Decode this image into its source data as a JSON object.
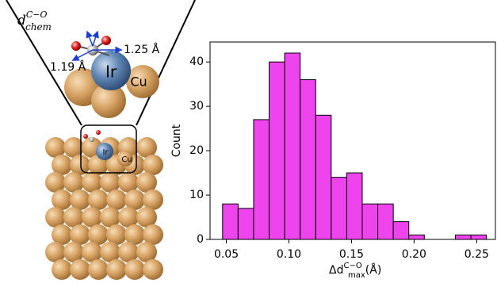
{
  "illustration": {
    "bond_label": {
      "base": "d",
      "sup": "C−O",
      "sub": "chem"
    },
    "distance_labels": [
      "1.25 Å",
      "1.19 Å"
    ],
    "atom_labels": [
      "Ir",
      "Cu",
      "Ir",
      "Cu"
    ]
  },
  "chart_data": {
    "type": "histogram",
    "ylabel": "Count",
    "xlabel": {
      "base": "Δd",
      "sup": "C−O",
      "sub": "max",
      "unit": "(Å)"
    },
    "bins": [
      0.047,
      0.0594,
      0.0718,
      0.0842,
      0.0966,
      0.109,
      0.1214,
      0.1338,
      0.1462,
      0.1586,
      0.171,
      0.1834,
      0.1958,
      0.2082,
      0.2206,
      0.233,
      0.2454,
      0.2578
    ],
    "values": [
      8,
      7,
      27,
      40,
      42,
      36,
      28,
      14,
      15,
      8,
      8,
      4,
      1,
      0,
      0,
      1,
      1
    ],
    "color": "#ee44ee",
    "edgecolor": "#000000",
    "xlim": [
      0.037,
      0.265
    ],
    "ylim": [
      0,
      44.5
    ],
    "xticks": [
      0.05,
      {
        "value": 0.1,
        "label": "0.10"
      },
      0.15,
      {
        "value": 0.2,
        "label": "0.20"
      },
      0.25
    ],
    "yticks": [
      0,
      10,
      20,
      30,
      40
    ]
  }
}
